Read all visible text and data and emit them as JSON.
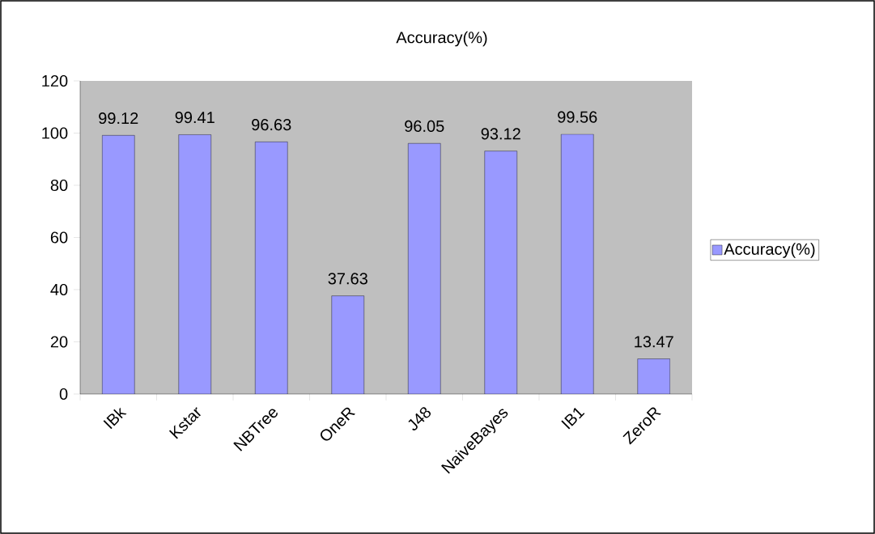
{
  "chart_data": {
    "type": "bar",
    "title": "Accuracy(%)",
    "categories": [
      "IBk",
      "Kstar",
      "NBTree",
      "OneR",
      "J48",
      "NaiveBayes",
      "IB1",
      "ZeroR"
    ],
    "series": [
      {
        "name": "Accuracy(%)",
        "color": "#9999ff",
        "values": [
          99.12,
          99.41,
          96.63,
          37.63,
          96.05,
          93.12,
          99.56,
          13.47
        ]
      }
    ],
    "ylim": [
      0,
      120
    ],
    "yticks": [
      0,
      20,
      40,
      60,
      80,
      100,
      120
    ],
    "data_labels": true,
    "legend": "right"
  }
}
